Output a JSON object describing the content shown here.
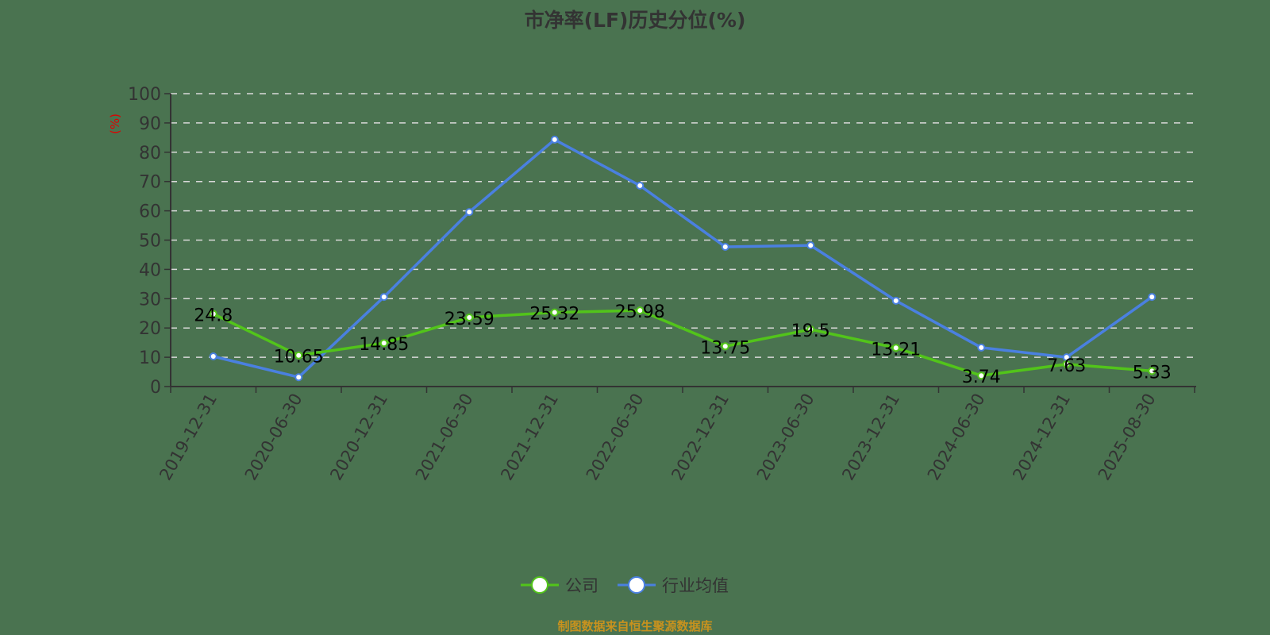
{
  "title": "市净率(LF)历史分位(%)",
  "source": "制图数据来自恒生聚源数据库",
  "colors": {
    "background": "#4a7350",
    "company": "#52c41a",
    "industry": "#4a80e0",
    "grid": "#d9d9d9",
    "axis": "#333333",
    "unit": "#e00000",
    "source": "#c8921e"
  },
  "legend": {
    "company": "公司",
    "industry": "行业均值"
  },
  "chart_data": {
    "type": "line",
    "title": "市净率(LF)历史分位(%)",
    "xlabel": "",
    "ylabel": "(%)",
    "ylim": [
      0,
      100
    ],
    "yticks": [
      0,
      10,
      20,
      30,
      40,
      50,
      60,
      70,
      80,
      90,
      100
    ],
    "grid": true,
    "legend_position": "bottom",
    "categories": [
      "2019-12-31",
      "2020-06-30",
      "2020-12-31",
      "2021-06-30",
      "2021-12-31",
      "2022-06-30",
      "2022-12-31",
      "2023-06-30",
      "2023-12-31",
      "2024-06-30",
      "2024-12-31",
      "2025-08-30"
    ],
    "series": [
      {
        "name": "公司",
        "values": [
          24.8,
          10.65,
          14.85,
          23.59,
          25.32,
          25.98,
          13.75,
          19.5,
          13.21,
          3.74,
          7.63,
          5.33
        ],
        "labels_shown": true
      },
      {
        "name": "行业均值",
        "values": [
          10.3,
          3.2,
          30.6,
          59.6,
          84.3,
          68.6,
          47.7,
          48.2,
          29.3,
          13.3,
          10.0,
          30.6
        ],
        "labels_shown": false
      }
    ]
  }
}
